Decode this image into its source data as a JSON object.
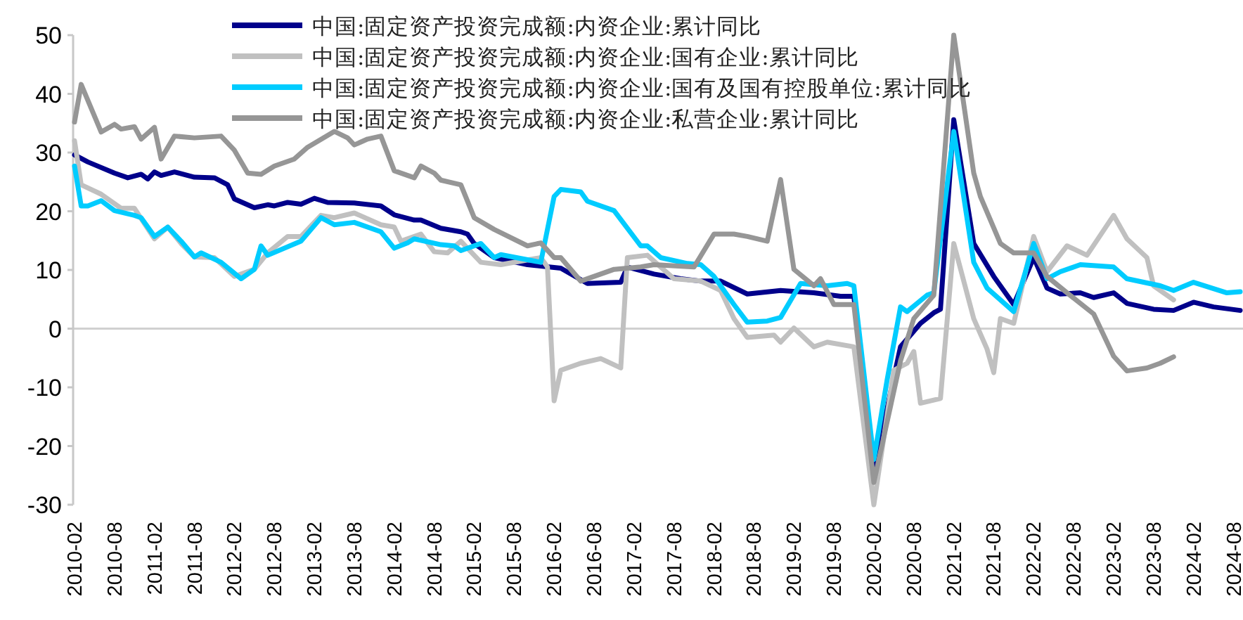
{
  "chart_data": {
    "type": "line",
    "legend": "top",
    "marker": "none",
    "line_style": "solid",
    "xlim": [
      "2010-02",
      "2024-09"
    ],
    "ylim": [
      -30,
      50
    ],
    "yticks": [
      -30,
      -20,
      -10,
      0,
      10,
      20,
      30,
      40,
      50
    ],
    "xticks": [
      "2010-02",
      "2010-08",
      "2011-02",
      "2011-08",
      "2012-02",
      "2012-08",
      "2013-02",
      "2013-08",
      "2014-02",
      "2014-08",
      "2015-02",
      "2015-08",
      "2016-02",
      "2016-08",
      "2017-02",
      "2017-08",
      "2018-02",
      "2018-08",
      "2019-02",
      "2019-08",
      "2020-02",
      "2020-08",
      "2021-02",
      "2021-08",
      "2022-02",
      "2022-08",
      "2023-02",
      "2023-08",
      "2024-02",
      "2024-08"
    ],
    "series": [
      {
        "name": "中国:固定资产投资完成额:内资企业:累计同比",
        "color": "#00008b",
        "x": [
          "2010-02",
          "2010-04",
          "2010-08",
          "2010-10",
          "2010-12",
          "2011-01",
          "2011-02",
          "2011-03",
          "2011-05",
          "2011-08",
          "2011-11",
          "2012-01",
          "2012-02",
          "2012-05",
          "2012-07",
          "2012-08",
          "2012-10",
          "2012-12",
          "2013-02",
          "2013-04",
          "2013-08",
          "2013-12",
          "2014-02",
          "2014-05",
          "2014-06",
          "2014-09",
          "2014-12",
          "2015-01",
          "2015-02",
          "2015-05",
          "2015-10",
          "2016-03",
          "2016-07",
          "2016-12",
          "2017-01",
          "2017-05",
          "2017-09",
          "2017-12",
          "2018-03",
          "2018-07",
          "2018-12",
          "2019-05",
          "2019-09",
          "2019-11",
          "2020-02",
          "2020-06",
          "2020-09",
          "2020-11",
          "2020-12",
          "2021-02",
          "2021-05",
          "2021-08",
          "2021-11",
          "2022-02",
          "2022-04",
          "2022-06",
          "2022-09",
          "2022-11",
          "2023-02",
          "2023-04",
          "2023-08",
          "2023-11",
          "2024-02",
          "2024-05",
          "2024-09"
        ],
        "values": [
          29.6,
          28.4,
          26.5,
          25.7,
          26.3,
          25.5,
          26.7,
          26.1,
          26.7,
          25.8,
          25.7,
          24.5,
          22.1,
          20.6,
          21.1,
          20.9,
          21.5,
          21.2,
          22.2,
          21.5,
          21.4,
          20.9,
          19.4,
          18.5,
          18.5,
          17.1,
          16.5,
          16.1,
          14.5,
          12.1,
          10.9,
          10.3,
          7.7,
          7.9,
          10.5,
          9.3,
          8.5,
          8.1,
          8.1,
          5.9,
          6.5,
          6.1,
          5.5,
          5.5,
          -24,
          -3.1,
          0.9,
          2.7,
          3.3,
          35.6,
          14.5,
          8.9,
          4.1,
          12.1,
          6.9,
          5.9,
          6.1,
          5.3,
          6.1,
          4.3,
          3.3,
          3.1,
          4.5,
          3.7,
          3.1
        ]
      },
      {
        "name": "中国:固定资产投资完成额:内资企业:国有企业:累计同比",
        "color": "#c0c0c0",
        "x": [
          "2010-02",
          "2010-03",
          "2010-06",
          "2010-09",
          "2010-11",
          "2011-02",
          "2011-04",
          "2011-06",
          "2011-08",
          "2011-11",
          "2012-02",
          "2012-05",
          "2012-07",
          "2012-10",
          "2012-12",
          "2013-03",
          "2013-05",
          "2013-08",
          "2013-12",
          "2014-02",
          "2014-03",
          "2014-06",
          "2014-08",
          "2014-10",
          "2014-12",
          "2015-03",
          "2015-06",
          "2015-12",
          "2016-01",
          "2016-02",
          "2016-03",
          "2016-06",
          "2016-09",
          "2016-12",
          "2017-01",
          "2017-04",
          "2017-08",
          "2017-12",
          "2018-03",
          "2018-05",
          "2018-07",
          "2018-11",
          "2018-12",
          "2019-02",
          "2019-05",
          "2019-07",
          "2019-11",
          "2020-02",
          "2020-05",
          "2020-07",
          "2020-08",
          "2020-09",
          "2020-12",
          "2021-02",
          "2021-05",
          "2021-07",
          "2021-08",
          "2021-09",
          "2021-11",
          "2022-02",
          "2022-04",
          "2022-07",
          "2022-10",
          "2023-02",
          "2023-04",
          "2023-07",
          "2023-08",
          "2023-11"
        ],
        "values": [
          32,
          24.5,
          22.9,
          20.5,
          20.5,
          15.3,
          17.3,
          14.5,
          12.2,
          12.1,
          8.9,
          10.1,
          12.9,
          15.7,
          15.7,
          19.3,
          18.9,
          19.7,
          17.7,
          17.3,
          14.9,
          16.1,
          13.1,
          12.9,
          14.9,
          11.3,
          10.9,
          12.1,
          10.5,
          -12.3,
          -7.1,
          -5.9,
          -5.1,
          -6.7,
          12.1,
          12.5,
          8.5,
          8.1,
          6.5,
          1.7,
          -1.5,
          -1.1,
          -2.3,
          0.1,
          -3.1,
          -2.3,
          -3.1,
          -30,
          -7.1,
          -5.9,
          -3.9,
          -12.7,
          -11.9,
          14.5,
          1.7,
          -3.5,
          -7.5,
          1.7,
          0.9,
          15.7,
          9.7,
          14.1,
          12.5,
          19.3,
          15.3,
          12.1,
          7.3,
          4.9
        ]
      },
      {
        "name": "中国:固定资产投资完成额:内资企业:国有及国有控股单位:累计同比",
        "color": "#00ccff",
        "x": [
          "2010-02",
          "2010-03",
          "2010-04",
          "2010-06",
          "2010-08",
          "2010-11",
          "2010-12",
          "2011-02",
          "2011-04",
          "2011-06",
          "2011-08",
          "2011-09",
          "2011-12",
          "2012-03",
          "2012-05",
          "2012-06",
          "2012-07",
          "2012-12",
          "2013-03",
          "2013-05",
          "2013-08",
          "2013-12",
          "2014-02",
          "2014-04",
          "2014-05",
          "2014-09",
          "2014-11",
          "2014-12",
          "2015-03",
          "2015-05",
          "2015-06",
          "2015-12",
          "2016-02",
          "2016-03",
          "2016-06",
          "2016-07",
          "2016-11",
          "2017-03",
          "2017-04",
          "2017-06",
          "2017-10",
          "2017-12",
          "2018-02",
          "2018-05",
          "2018-07",
          "2018-10",
          "2018-12",
          "2019-03",
          "2019-07",
          "2019-10",
          "2019-11",
          "2020-02",
          "2020-04",
          "2020-06",
          "2020-07",
          "2020-10",
          "2020-11",
          "2021-02",
          "2021-05",
          "2021-07",
          "2021-11",
          "2022-02",
          "2022-04",
          "2022-06",
          "2022-09",
          "2023-02",
          "2023-04",
          "2023-09",
          "2023-11",
          "2024-02",
          "2024-07",
          "2024-09"
        ],
        "values": [
          27.7,
          20.9,
          20.9,
          21.8,
          20.1,
          19.3,
          18.9,
          15.7,
          17.3,
          14.9,
          12.2,
          12.9,
          11.3,
          8.5,
          10.1,
          14.1,
          12.5,
          14.9,
          18.9,
          17.7,
          18.1,
          16.5,
          13.7,
          14.6,
          15.3,
          14.3,
          14.1,
          13.3,
          14.5,
          12.1,
          12.6,
          11.3,
          22.5,
          23.7,
          23.3,
          21.7,
          20.1,
          14.1,
          14.1,
          12.1,
          11.1,
          10.9,
          8.9,
          4.1,
          1.1,
          1.3,
          1.9,
          7.7,
          7.3,
          7.7,
          7.3,
          -22.3,
          -8.7,
          3.7,
          2.9,
          5.7,
          6.1,
          33.6,
          11.3,
          6.9,
          2.9,
          14.5,
          8.5,
          9.7,
          10.9,
          10.5,
          8.5,
          7.3,
          6.5,
          7.9,
          6.1,
          6.3
        ]
      },
      {
        "name": "中国:固定资产投资完成额:内资企业:私营企业:累计同比",
        "color": "#969696",
        "x": [
          "2010-02",
          "2010-03",
          "2010-06",
          "2010-08",
          "2010-09",
          "2010-11",
          "2010-12",
          "2011-02",
          "2011-03",
          "2011-05",
          "2011-08",
          "2011-12",
          "2012-02",
          "2012-04",
          "2012-06",
          "2012-08",
          "2012-11",
          "2013-01",
          "2013-05",
          "2013-07",
          "2013-08",
          "2013-10",
          "2013-12",
          "2014-02",
          "2014-05",
          "2014-06",
          "2014-08",
          "2014-09",
          "2014-12",
          "2015-02",
          "2015-05",
          "2015-10",
          "2015-12",
          "2016-02",
          "2016-03",
          "2016-06",
          "2016-11",
          "2017-03",
          "2017-05",
          "2017-11",
          "2018-02",
          "2018-05",
          "2018-07",
          "2018-10",
          "2018-12",
          "2019-02",
          "2019-05",
          "2019-06",
          "2019-08",
          "2019-11",
          "2020-02",
          "2020-06",
          "2020-08",
          "2020-11",
          "2021-02",
          "2021-05",
          "2021-06",
          "2021-09",
          "2021-11",
          "2022-02",
          "2022-04",
          "2022-07",
          "2022-11",
          "2023-02",
          "2023-04",
          "2023-07",
          "2023-09",
          "2023-11"
        ],
        "values": [
          35.2,
          41.6,
          33.5,
          34.8,
          34.0,
          34.4,
          32.3,
          34.3,
          28.9,
          32.8,
          32.5,
          32.8,
          30.4,
          26.5,
          26.3,
          27.7,
          28.9,
          30.9,
          33.6,
          32.5,
          31.3,
          32.3,
          32.8,
          26.9,
          25.7,
          27.7,
          26.5,
          25.3,
          24.5,
          18.9,
          16.9,
          14.1,
          14.6,
          12.1,
          12.1,
          8.1,
          10.1,
          10.5,
          10.9,
          10.5,
          16.1,
          16.1,
          15.7,
          14.9,
          25.4,
          10.1,
          7.3,
          8.5,
          4.1,
          4.1,
          -26.2,
          -5.5,
          1.7,
          5.7,
          50,
          26.5,
          22.5,
          14.5,
          12.9,
          12.9,
          8.9,
          6.1,
          2.5,
          -4.7,
          -7.2,
          -6.7,
          -5.9,
          -4.8
        ]
      }
    ]
  }
}
